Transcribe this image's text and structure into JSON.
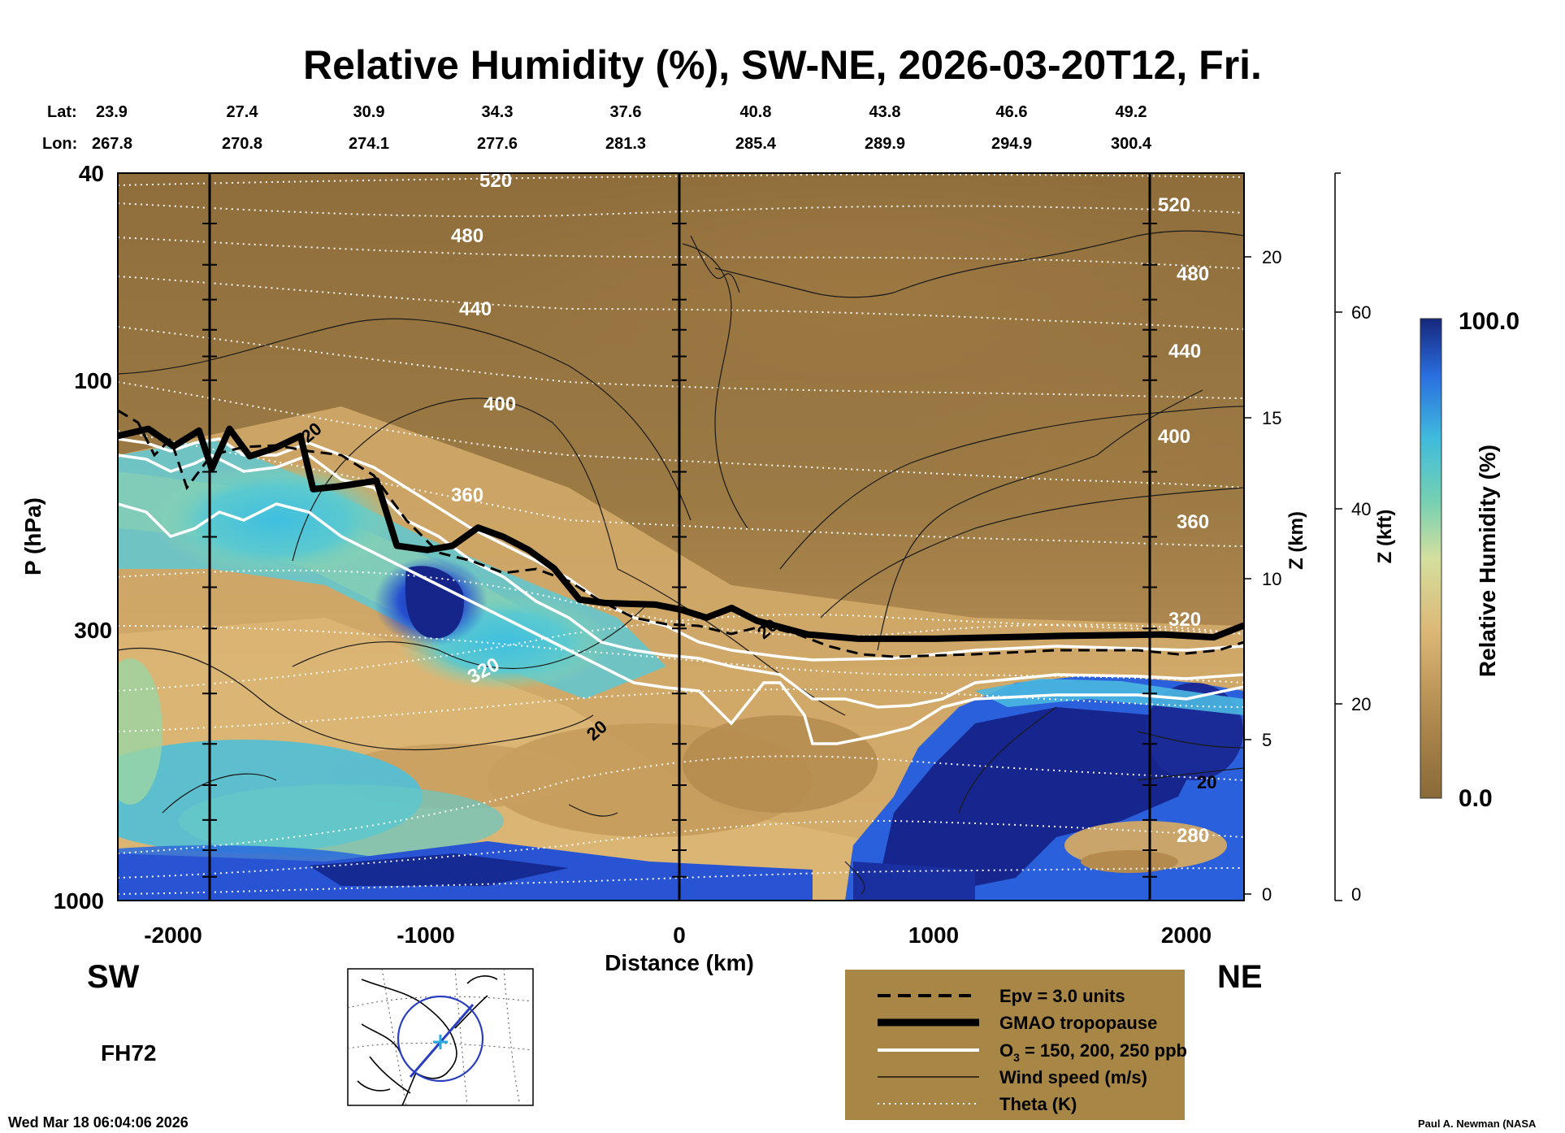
{
  "chart_data": {
    "type": "heatmap",
    "title": "Relative Humidity (%), SW-NE, 2026-03-20T12, Fri.",
    "xlabel": "Distance (km)",
    "ylabel": "P (hPa)",
    "right_axis_km_label": "Z (km)",
    "right_axis_kft_label": "Z (kft)",
    "xlim": [
      -2220,
      2220
    ],
    "ylim": [
      1000,
      40
    ],
    "y_scale": "log",
    "x_ticks": [
      "-2000",
      "-1000",
      "0",
      "1000",
      "2000"
    ],
    "y_ticks": [
      "40",
      "100",
      "300",
      "1000"
    ],
    "z_km_ticks": [
      "20",
      "15",
      "10",
      "5",
      "0"
    ],
    "z_kft_ticks": [
      "60",
      "40",
      "20",
      "0"
    ],
    "lat_label": "Lat:",
    "lon_label": "Lon:",
    "lat_values": [
      "23.9",
      "27.4",
      "30.9",
      "34.3",
      "37.6",
      "40.8",
      "43.8",
      "46.6",
      "49.2"
    ],
    "lon_values": [
      "267.8",
      "270.8",
      "274.1",
      "277.6",
      "281.3",
      "285.4",
      "289.9",
      "294.9",
      "300.4"
    ],
    "direction_left": "SW",
    "direction_right": "NE",
    "forecast_hour": "FH72",
    "colorbar": {
      "label": "Relative Humidity (%)",
      "max_label": "100.0",
      "min_label": "0.0",
      "min": 0,
      "max": 100
    },
    "theta_labels": [
      "520",
      "480",
      "440",
      "400",
      "360",
      "320",
      "280"
    ],
    "wind_labels": [
      "20"
    ],
    "legend": [
      {
        "label": "Epv = 3.0 units",
        "style": "dashed-black"
      },
      {
        "label": "GMAO tropopause",
        "style": "thick-black"
      },
      {
        "label": "O",
        "sub": "3",
        "label_rest": " = 150, 200, 250 ppb",
        "style": "white"
      },
      {
        "label": "Wind speed (m/s)",
        "style": "thin-black"
      },
      {
        "label": "Theta (K)",
        "style": "dotted-white"
      }
    ],
    "legend_position": "bottom-center",
    "tropopause_hpa": [
      [
        -2220,
        128
      ],
      [
        -2100,
        124
      ],
      [
        -2000,
        134
      ],
      [
        -1900,
        125
      ],
      [
        -1850,
        148
      ],
      [
        -1780,
        124
      ],
      [
        -1700,
        140
      ],
      [
        -1600,
        135
      ],
      [
        -1500,
        128
      ],
      [
        -1450,
        162
      ],
      [
        -1350,
        160
      ],
      [
        -1200,
        156
      ],
      [
        -1120,
        208
      ],
      [
        -1000,
        212
      ],
      [
        -900,
        208
      ],
      [
        -800,
        192
      ],
      [
        -700,
        200
      ],
      [
        -600,
        212
      ],
      [
        -500,
        230
      ],
      [
        -400,
        264
      ],
      [
        -300,
        268
      ],
      [
        -100,
        270
      ],
      [
        0,
        276
      ],
      [
        100,
        286
      ],
      [
        200,
        274
      ],
      [
        300,
        290
      ],
      [
        500,
        308
      ],
      [
        700,
        314
      ],
      [
        1000,
        314
      ],
      [
        1500,
        310
      ],
      [
        1900,
        308
      ],
      [
        2100,
        312
      ],
      [
        2220,
        296
      ]
    ]
  },
  "footer": {
    "timestamp": "Wed Mar 18 06:04:06 2026",
    "credit": "Paul A. Newman (NASA"
  },
  "colors": {
    "dry": "#8a6a38",
    "moist_tan": "#d8b172",
    "mid_green": "#9fd79a",
    "cyan": "#49c3d8",
    "blue": "#2257d8",
    "deep_blue": "#14258f",
    "legend_bg": "#a88646"
  }
}
